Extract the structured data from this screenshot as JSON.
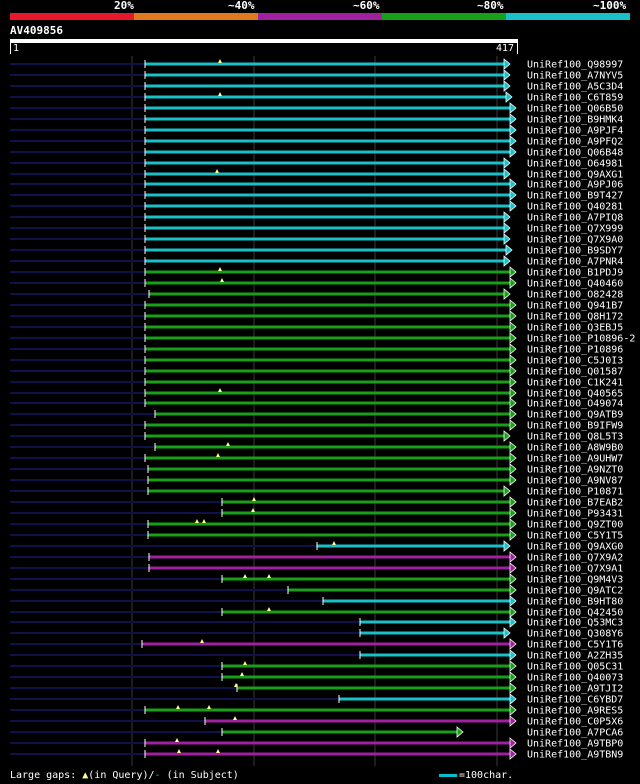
{
  "legend": {
    "labels": [
      "20%",
      "~40%",
      "~60%",
      "~80%",
      "~100%"
    ],
    "colors": [
      "#e8182c",
      "#e07a1a",
      "#a020a0",
      "#18a018",
      "#18c0c8"
    ]
  },
  "query": {
    "name": "AV409856",
    "start": "1",
    "end": "417"
  },
  "colors": {
    "cyan": "#18c0c8",
    "green": "#18a018",
    "purple": "#a020a0",
    "dark": "#10104a",
    "gap": "#ffff90"
  },
  "hits": [
    {
      "label": "UniRef100_Q98997",
      "color": "cyan",
      "start": 145,
      "end": 510,
      "gaps": [
        220
      ]
    },
    {
      "label": "UniRef100_A7NYV5",
      "color": "cyan",
      "start": 145,
      "end": 510,
      "gaps": []
    },
    {
      "label": "UniRef100_A5C3D4",
      "color": "cyan",
      "start": 145,
      "end": 510,
      "gaps": []
    },
    {
      "label": "UniRef100_C6T859",
      "color": "cyan",
      "start": 145,
      "end": 512,
      "gaps": [
        220
      ]
    },
    {
      "label": "UniRef100_Q06B50",
      "color": "cyan",
      "start": 145,
      "end": 516,
      "gaps": []
    },
    {
      "label": "UniRef100_B9HMK4",
      "color": "cyan",
      "start": 145,
      "end": 516,
      "gaps": []
    },
    {
      "label": "UniRef100_A9PJF4",
      "color": "cyan",
      "start": 145,
      "end": 516,
      "gaps": []
    },
    {
      "label": "UniRef100_A9PFQ2",
      "color": "cyan",
      "start": 145,
      "end": 516,
      "gaps": []
    },
    {
      "label": "UniRef100_Q06B48",
      "color": "cyan",
      "start": 145,
      "end": 516,
      "gaps": []
    },
    {
      "label": "UniRef100_O64981",
      "color": "cyan",
      "start": 145,
      "end": 510,
      "gaps": []
    },
    {
      "label": "UniRef100_Q9AXG1",
      "color": "cyan",
      "start": 145,
      "end": 510,
      "gaps": [
        217
      ]
    },
    {
      "label": "UniRef100_A9PJ06",
      "color": "cyan",
      "start": 145,
      "end": 516,
      "gaps": []
    },
    {
      "label": "UniRef100_B9T427",
      "color": "cyan",
      "start": 145,
      "end": 516,
      "gaps": []
    },
    {
      "label": "UniRef100_Q40281",
      "color": "cyan",
      "start": 145,
      "end": 516,
      "gaps": []
    },
    {
      "label": "UniRef100_A7PIQ8",
      "color": "cyan",
      "start": 145,
      "end": 510,
      "gaps": []
    },
    {
      "label": "UniRef100_Q7X999",
      "color": "cyan",
      "start": 145,
      "end": 510,
      "gaps": []
    },
    {
      "label": "UniRef100_Q7X9A0",
      "color": "cyan",
      "start": 145,
      "end": 510,
      "gaps": []
    },
    {
      "label": "UniRef100_B9SDY7",
      "color": "cyan",
      "start": 145,
      "end": 512,
      "gaps": []
    },
    {
      "label": "UniRef100_A7PNR4",
      "color": "cyan",
      "start": 145,
      "end": 510,
      "gaps": []
    },
    {
      "label": "UniRef100_B1PDJ9",
      "color": "green",
      "start": 145,
      "end": 516,
      "gaps": [
        220
      ]
    },
    {
      "label": "UniRef100_Q40460",
      "color": "green",
      "start": 145,
      "end": 516,
      "gaps": [
        222
      ]
    },
    {
      "label": "UniRef100_O82428",
      "color": "green",
      "start": 149,
      "end": 510,
      "gaps": []
    },
    {
      "label": "UniRef100_Q941B7",
      "color": "green",
      "start": 145,
      "end": 516,
      "gaps": []
    },
    {
      "label": "UniRef100_Q8H172",
      "color": "green",
      "start": 145,
      "end": 516,
      "gaps": []
    },
    {
      "label": "UniRef100_Q3EBJ5",
      "color": "green",
      "start": 145,
      "end": 516,
      "gaps": []
    },
    {
      "label": "UniRef100_P10896-2",
      "color": "green",
      "start": 145,
      "end": 516,
      "gaps": []
    },
    {
      "label": "UniRef100_P10896",
      "color": "green",
      "start": 145,
      "end": 516,
      "gaps": []
    },
    {
      "label": "UniRef100_C5J0I3",
      "color": "green",
      "start": 145,
      "end": 516,
      "gaps": []
    },
    {
      "label": "UniRef100_Q01587",
      "color": "green",
      "start": 145,
      "end": 516,
      "gaps": []
    },
    {
      "label": "UniRef100_C1K241",
      "color": "green",
      "start": 145,
      "end": 516,
      "gaps": []
    },
    {
      "label": "UniRef100_Q40565",
      "color": "green",
      "start": 145,
      "end": 516,
      "gaps": [
        220
      ]
    },
    {
      "label": "UniRef100_O49074",
      "color": "green",
      "start": 145,
      "end": 516,
      "gaps": []
    },
    {
      "label": "UniRef100_Q9ATB9",
      "color": "green",
      "start": 155,
      "end": 516,
      "gaps": []
    },
    {
      "label": "UniRef100_B9IFW9",
      "color": "green",
      "start": 145,
      "end": 516,
      "gaps": []
    },
    {
      "label": "UniRef100_Q8L5T3",
      "color": "green",
      "start": 145,
      "end": 510,
      "gaps": []
    },
    {
      "label": "UniRef100_A8W9B0",
      "color": "green",
      "start": 155,
      "end": 516,
      "gaps": [
        228
      ]
    },
    {
      "label": "UniRef100_A9UHW7",
      "color": "green",
      "start": 145,
      "end": 516,
      "gaps": [
        218
      ]
    },
    {
      "label": "UniRef100_A9NZT0",
      "color": "green",
      "start": 148,
      "end": 516,
      "gaps": []
    },
    {
      "label": "UniRef100_A9NV87",
      "color": "green",
      "start": 148,
      "end": 516,
      "gaps": []
    },
    {
      "label": "UniRef100_P10871",
      "color": "green",
      "start": 148,
      "end": 510,
      "gaps": []
    },
    {
      "label": "UniRef100_B7EAB2",
      "color": "green",
      "start": 222,
      "end": 516,
      "gaps": [
        254
      ]
    },
    {
      "label": "UniRef100_P93431",
      "color": "green",
      "start": 222,
      "end": 516,
      "gaps": [
        253
      ]
    },
    {
      "label": "UniRef100_Q9ZT00",
      "color": "green",
      "start": 148,
      "end": 516,
      "gaps": [
        197,
        204
      ]
    },
    {
      "label": "UniRef100_C5Y1T5",
      "color": "green",
      "start": 148,
      "end": 516,
      "gaps": []
    },
    {
      "label": "UniRef100_Q9AXG0",
      "color": "cyan",
      "start": 317,
      "end": 510,
      "gaps": [
        334
      ]
    },
    {
      "label": "UniRef100_Q7X9A2",
      "color": "purple",
      "start": 149,
      "end": 516,
      "gaps": []
    },
    {
      "label": "UniRef100_Q7X9A1",
      "color": "purple",
      "start": 149,
      "end": 516,
      "gaps": []
    },
    {
      "label": "UniRef100_Q9M4V3",
      "color": "green",
      "start": 222,
      "end": 516,
      "gaps": [
        245,
        269
      ]
    },
    {
      "label": "UniRef100_Q9ATC2",
      "color": "green",
      "start": 288,
      "end": 516,
      "gaps": []
    },
    {
      "label": "UniRef100_B9HT80",
      "color": "cyan",
      "start": 323,
      "end": 516,
      "gaps": []
    },
    {
      "label": "UniRef100_Q42450",
      "color": "green",
      "start": 222,
      "end": 516,
      "gaps": [
        269
      ]
    },
    {
      "label": "UniRef100_Q53MC3",
      "color": "cyan",
      "start": 360,
      "end": 516,
      "gaps": []
    },
    {
      "label": "UniRef100_Q308Y6",
      "color": "cyan",
      "start": 360,
      "end": 510,
      "gaps": []
    },
    {
      "label": "UniRef100_C5Y1T6",
      "color": "purple",
      "start": 142,
      "end": 516,
      "gaps": [
        202
      ]
    },
    {
      "label": "UniRef100_A2ZH35",
      "color": "cyan",
      "start": 360,
      "end": 516,
      "gaps": []
    },
    {
      "label": "UniRef100_Q05C31",
      "color": "green",
      "start": 222,
      "end": 516,
      "gaps": [
        245
      ]
    },
    {
      "label": "UniRef100_Q40073",
      "color": "green",
      "start": 222,
      "end": 516,
      "gaps": [
        242
      ]
    },
    {
      "label": "UniRef100_A9TJI2",
      "color": "green",
      "start": 237,
      "end": 516,
      "gaps": [
        236
      ]
    },
    {
      "label": "UniRef100_C6YBD7",
      "color": "cyan",
      "start": 339,
      "end": 516,
      "gaps": []
    },
    {
      "label": "UniRef100_A9RES5",
      "color": "green",
      "start": 145,
      "end": 516,
      "gaps": [
        178,
        209
      ]
    },
    {
      "label": "UniRef100_C0P5X6",
      "color": "purple",
      "start": 205,
      "end": 516,
      "gaps": [
        235
      ]
    },
    {
      "label": "UniRef100_A7PCA6",
      "color": "green",
      "start": 222,
      "end": 463,
      "gaps": []
    },
    {
      "label": "UniRef100_A9TBP0",
      "color": "purple",
      "start": 145,
      "end": 516,
      "gaps": [
        177
      ]
    },
    {
      "label": "UniRef100_A9TBN9",
      "color": "purple",
      "start": 145,
      "end": 516,
      "gaps": [
        179,
        218
      ]
    }
  ],
  "footer": {
    "large_gaps": "Large gaps: ",
    "in_query": "(in Query)/",
    "in_subject": " (in Subject)",
    "scale": "=100char."
  }
}
